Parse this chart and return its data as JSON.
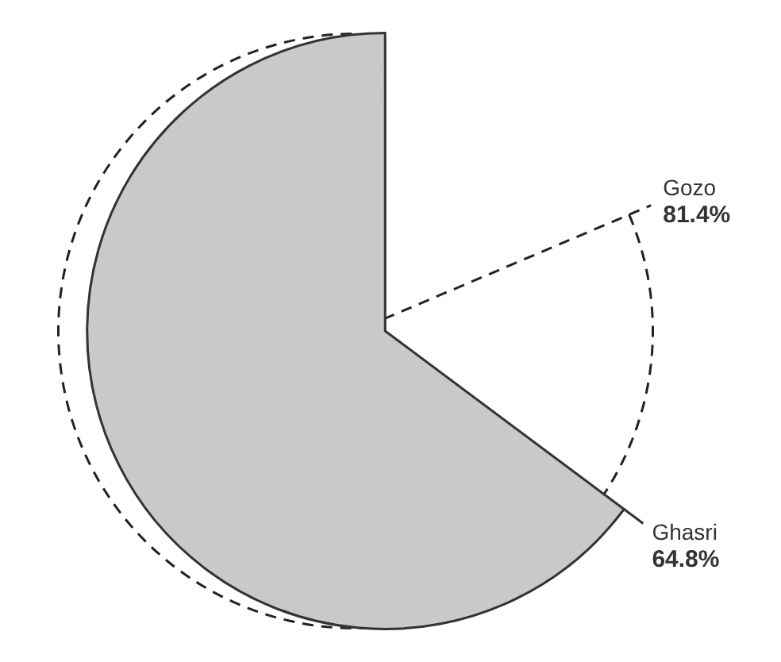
{
  "chart_data": {
    "type": "pie",
    "categories": [
      "Gozo",
      "Ghasri"
    ],
    "values": [
      81.4,
      64.8
    ],
    "value_labels": [
      "81.4%",
      "64.8%"
    ],
    "colors": [
      "#ffffff",
      "#c9c9c9"
    ],
    "legend": false
  }
}
